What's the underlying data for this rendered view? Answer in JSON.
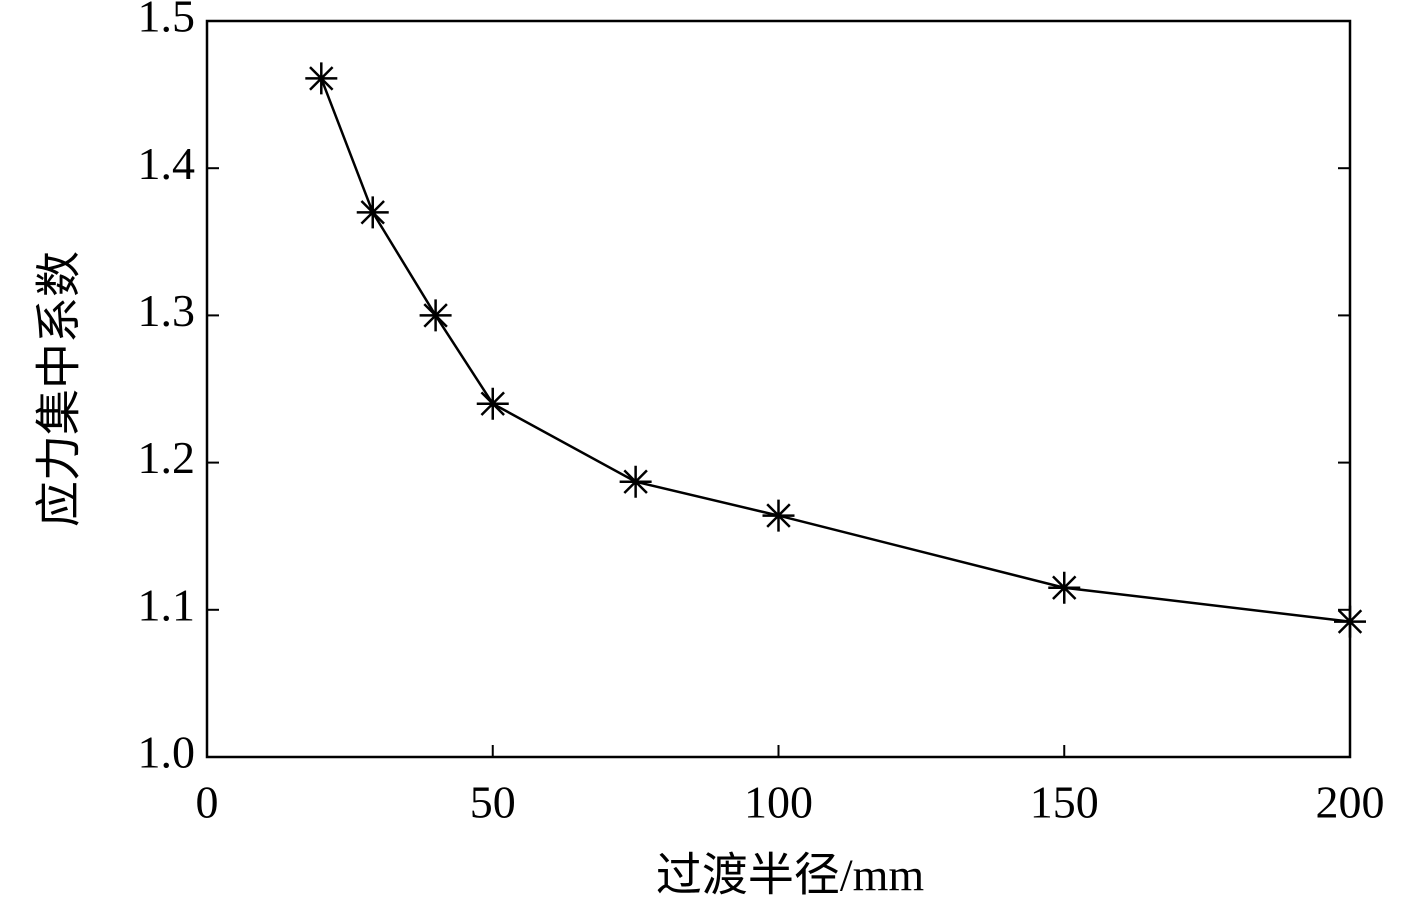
{
  "chart_data": {
    "type": "line",
    "x_label": "过渡半径/mm",
    "y_label": "应力集中系数",
    "x": [
      20,
      29,
      40,
      50,
      75,
      100,
      150,
      200
    ],
    "values": [
      1.461,
      1.37,
      1.3,
      1.24,
      1.187,
      1.164,
      1.115,
      1.092
    ],
    "color": "#000000",
    "marker": "asterisk",
    "xlim": [
      0,
      200
    ],
    "xticks": [
      0,
      50,
      100,
      150,
      200
    ],
    "ylim": [
      1.0,
      1.5
    ],
    "yticks": [
      {
        "value": 1.0,
        "label": "1.0"
      },
      1.1,
      1.2,
      1.3,
      1.4,
      1.5
    ]
  }
}
